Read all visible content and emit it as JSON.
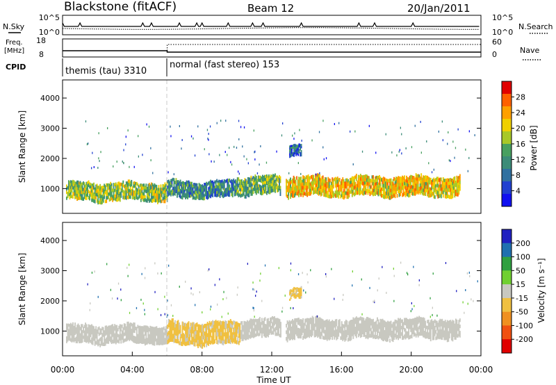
{
  "header": {
    "station": "Blackstone (fitACF)",
    "beam": "Beam 12",
    "date": "20/Jan/2011"
  },
  "noise_panel": {
    "left_label": "N.Sky",
    "right_label": "N.Search",
    "left_ticks": [
      "10^5",
      "10^0"
    ],
    "right_ticks": [
      "10^5",
      "10^0"
    ]
  },
  "freq_panel": {
    "left_label_line1": "Freq.",
    "left_label_line2": "[MHz]",
    "right_label": "Nave",
    "left_ticks": [
      "18",
      "8"
    ],
    "right_ticks": [
      "60",
      "0"
    ]
  },
  "cpid": {
    "label": "CPID",
    "programs": [
      {
        "name": "themis (tau) 3310",
        "start_hour": 0
      },
      {
        "name": "normal (fast stereo) 153",
        "start_hour": 6
      }
    ]
  },
  "time_axis": {
    "label": "Time UT",
    "ticks": [
      "00:00",
      "04:00",
      "08:00",
      "12:00",
      "16:00",
      "20:00",
      "00:00"
    ]
  },
  "power_panel": {
    "ylabel": "Slant Range [km]",
    "yticks": [
      "4000",
      "3000",
      "2000",
      "1000"
    ],
    "colorbar_label": "Power [dB]",
    "colorbar_ticks": [
      "28",
      "24",
      "20",
      "16",
      "12",
      "8",
      "4"
    ],
    "colorbar_colors": [
      "#e00000",
      "#ff6000",
      "#ffa000",
      "#f0d000",
      "#a8c828",
      "#48a060",
      "#3c8c78",
      "#3070a0",
      "#2040d0",
      "#1010f0"
    ]
  },
  "velocity_panel": {
    "ylabel": "Slant Range [km]",
    "yticks": [
      "4000",
      "3000",
      "2000",
      "1000"
    ],
    "colorbar_label": "Velocity [m s⁻¹]",
    "colorbar_ticks": [
      "200",
      "100",
      "50",
      "15",
      "-15",
      "-50",
      "-100",
      "-200"
    ],
    "colorbar_colors": [
      "#2020c0",
      "#2070b0",
      "#30a040",
      "#70d030",
      "#c8c8c0",
      "#f0c040",
      "#f09020",
      "#f05010",
      "#e00000"
    ]
  },
  "chart_data": [
    {
      "type": "heatmap",
      "panel": "power",
      "x_unit": "hours UT",
      "xlim": [
        0,
        24
      ],
      "y_unit": "km",
      "ylim": [
        180,
        4600
      ],
      "z_label": "Power [dB]",
      "zlim": [
        0,
        30
      ],
      "echo_bands": [
        {
          "x_start": 0.2,
          "x_end": 6.0,
          "y_low": 600,
          "y_high": 1200,
          "value": 16
        },
        {
          "x_start": 6.0,
          "x_end": 10.0,
          "y_low": 700,
          "y_high": 1250,
          "value": 10
        },
        {
          "x_start": 10.0,
          "x_end": 12.5,
          "y_low": 800,
          "y_high": 1400,
          "value": 14
        },
        {
          "x_start": 12.8,
          "x_end": 22.8,
          "y_low": 750,
          "y_high": 1400,
          "value": 20
        },
        {
          "x_start": 13.0,
          "x_end": 13.7,
          "y_low": 2050,
          "y_high": 2400,
          "value": 8
        }
      ]
    },
    {
      "type": "heatmap",
      "panel": "velocity",
      "x_unit": "hours UT",
      "xlim": [
        0,
        24
      ],
      "y_unit": "km",
      "ylim": [
        180,
        4600
      ],
      "z_label": "Velocity [m s⁻¹]",
      "zlim": [
        -250,
        250
      ],
      "echo_bands": [
        {
          "x_start": 0.2,
          "x_end": 6.0,
          "y_low": 600,
          "y_high": 1200,
          "value": 0
        },
        {
          "x_start": 6.0,
          "x_end": 10.2,
          "y_low": 550,
          "y_high": 1300,
          "value": -40
        },
        {
          "x_start": 10.2,
          "x_end": 12.5,
          "y_low": 800,
          "y_high": 1400,
          "value": 0
        },
        {
          "x_start": 12.8,
          "x_end": 22.8,
          "y_low": 750,
          "y_high": 1400,
          "value": 0
        },
        {
          "x_start": 13.0,
          "x_end": 13.7,
          "y_low": 2050,
          "y_high": 2400,
          "value": -40
        }
      ]
    }
  ]
}
